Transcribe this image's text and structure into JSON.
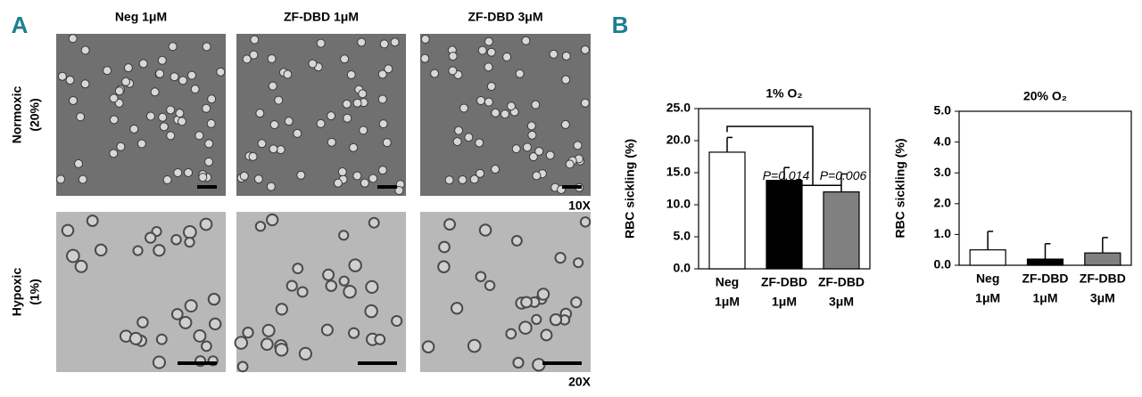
{
  "panel_a": {
    "label": "A",
    "columns": [
      "Neg 1μM",
      "ZF-DBD 1μM",
      "ZF-DBD 3μM"
    ],
    "rows": [
      [
        "Normoxic",
        "(20%)"
      ],
      [
        "Hypoxic",
        "(1%)"
      ]
    ],
    "magnifications": [
      "10X",
      "20X"
    ]
  },
  "panel_b": {
    "label": "B"
  },
  "chart_data": [
    {
      "type": "bar",
      "title": "1% O₂",
      "y_label": "RBC sickling (%)",
      "categories": [
        [
          "Neg",
          "1μM"
        ],
        [
          "ZF-DBD",
          "1μM"
        ],
        [
          "ZF-DBD",
          "3μM"
        ]
      ],
      "values": [
        18.2,
        13.8,
        12.0
      ],
      "errors": [
        2.3,
        2.0,
        2.8
      ],
      "colors": [
        "#ffffff",
        "#000000",
        "#808080"
      ],
      "ylim": [
        0,
        25
      ],
      "yticks": [
        {
          "value": 0,
          "label": "0.0"
        },
        {
          "value": 5,
          "label": "5.0"
        },
        {
          "value": 10,
          "label": "10.0"
        },
        {
          "value": 15,
          "label": "15.0"
        },
        {
          "value": 20,
          "label": "20.0"
        },
        {
          "value": 25,
          "label": "25.0"
        }
      ],
      "annotations": [
        "P=0.014",
        "P=0.006"
      ]
    },
    {
      "type": "bar",
      "title": "20% O₂",
      "y_label": "RBC sickling (%)",
      "categories": [
        [
          "Neg",
          "1μM"
        ],
        [
          "ZF-DBD",
          "1μM"
        ],
        [
          "ZF-DBD",
          "3μM"
        ]
      ],
      "values": [
        0.5,
        0.2,
        0.4
      ],
      "errors": [
        0.6,
        0.5,
        0.5
      ],
      "colors": [
        "#ffffff",
        "#000000",
        "#808080"
      ],
      "ylim": [
        0,
        5
      ],
      "yticks": [
        {
          "value": 0,
          "label": "0.0"
        },
        {
          "value": 1,
          "label": "1.0"
        },
        {
          "value": 2,
          "label": "2.0"
        },
        {
          "value": 3,
          "label": "3.0"
        },
        {
          "value": 4,
          "label": "4.0"
        },
        {
          "value": 5,
          "label": "5.0"
        }
      ]
    }
  ]
}
